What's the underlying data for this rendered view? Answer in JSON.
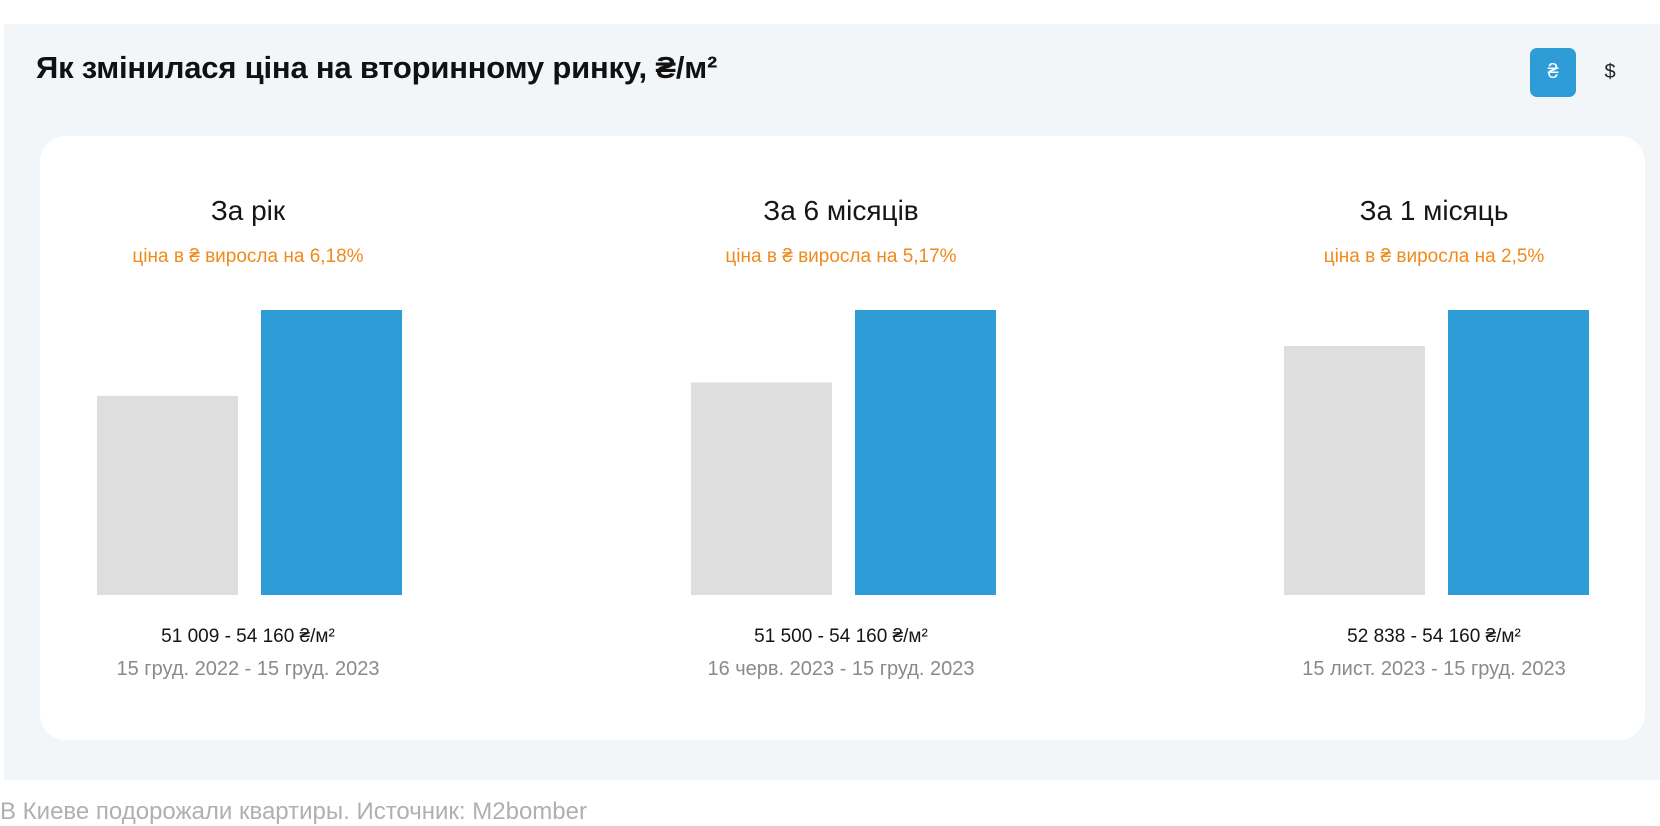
{
  "header": {
    "title": "Як змінилася ціна на вторинному ринку, ₴/м²",
    "currency_options": [
      {
        "label": "₴",
        "active": true
      },
      {
        "label": "$",
        "active": false
      }
    ]
  },
  "chart_data": {
    "type": "bar",
    "unit": "₴/м²",
    "colors": {
      "before": "#dedede",
      "after": "#2d9cd7",
      "change_text": "#f08a1c"
    },
    "panels": [
      {
        "title": "За рік",
        "change_text": "ціна в ₴ виросла на 6,18%",
        "values": [
          51009,
          54160
        ],
        "range_text": "51 009 - 54 160 ₴/м²",
        "dates_text": "15 груд. 2022 - 15 груд. 2023"
      },
      {
        "title": "За 6 місяців",
        "change_text": "ціна в ₴ виросла на 5,17%",
        "values": [
          51500,
          54160
        ],
        "range_text": "51 500 - 54 160 ₴/м²",
        "dates_text": "16 черв. 2023 - 15 груд. 2023"
      },
      {
        "title": "За 1 місяць",
        "change_text": "ціна в ₴ виросла на 2,5%",
        "values": [
          52838,
          54160
        ],
        "range_text": "52 838 - 54 160 ₴/м²",
        "dates_text": "15 лист. 2023 - 15 груд. 2023"
      }
    ]
  },
  "caption": "В Киеве подорожали квартиры. Источник: M2bomber"
}
